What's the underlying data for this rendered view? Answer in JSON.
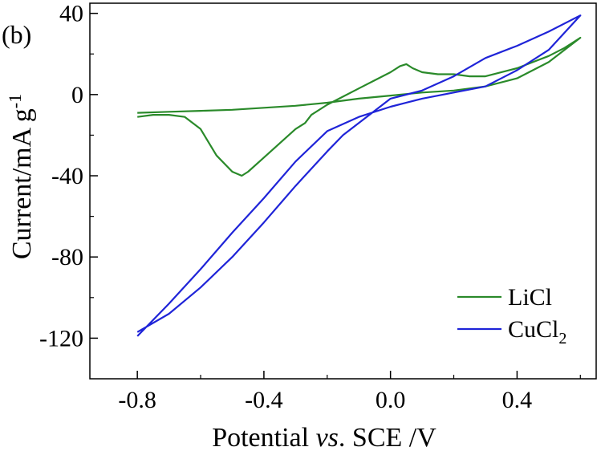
{
  "chart_data": {
    "type": "line",
    "panel_label": "(b)",
    "xlabel": "Potential vs. SCE /V",
    "xlabel_parts": {
      "pre": "Potential ",
      "italic": "vs",
      "post": ". SCE /V"
    },
    "ylabel": "Current/mA g-1",
    "ylabel_parts": {
      "main": "Current/mA g",
      "sup": "-1"
    },
    "xlim": [
      -0.95,
      0.65
    ],
    "ylim": [
      -140,
      45
    ],
    "x_ticks": [
      -0.8,
      -0.4,
      0.0,
      0.4
    ],
    "x_tick_labels": [
      "-0.8",
      "-0.4",
      "0.0",
      "0.4"
    ],
    "y_ticks": [
      40,
      0,
      -40,
      -80,
      -120
    ],
    "y_tick_labels": [
      "40",
      "0",
      "-40",
      "-80",
      "-120"
    ],
    "grid": false,
    "legend_position": "bottom-right",
    "series": [
      {
        "name": "LiCl",
        "color": "#2a8a2a",
        "x": [
          -0.8,
          -0.7,
          -0.6,
          -0.5,
          -0.4,
          -0.3,
          -0.2,
          -0.1,
          0.0,
          0.1,
          0.2,
          0.3,
          0.4,
          0.5,
          0.6,
          0.55,
          0.5,
          0.45,
          0.4,
          0.3,
          0.25,
          0.2,
          0.15,
          0.1,
          0.07,
          0.05,
          0.03,
          0.0,
          -0.05,
          -0.1,
          -0.15,
          -0.2,
          -0.25,
          -0.27,
          -0.3,
          -0.35,
          -0.4,
          -0.45,
          -0.47,
          -0.5,
          -0.55,
          -0.6,
          -0.65,
          -0.7,
          -0.75,
          -0.8
        ],
        "y": [
          -9,
          -8.5,
          -8,
          -7.5,
          -6.5,
          -5.5,
          -4,
          -2,
          -0.5,
          1,
          2,
          4,
          8,
          16,
          28,
          23,
          19,
          16,
          13,
          9,
          9,
          10,
          10,
          11,
          13,
          15,
          14,
          11,
          7,
          3,
          -1,
          -5,
          -10,
          -14,
          -17,
          -24,
          -31,
          -38,
          -40,
          -38,
          -30,
          -17,
          -11,
          -10,
          -10,
          -11
        ]
      },
      {
        "name": "CuCl2",
        "color": "#1f24d8",
        "x": [
          -0.8,
          -0.7,
          -0.6,
          -0.5,
          -0.4,
          -0.3,
          -0.2,
          -0.1,
          0.0,
          0.1,
          0.2,
          0.3,
          0.4,
          0.5,
          0.6,
          0.5,
          0.4,
          0.3,
          0.2,
          0.1,
          0.0,
          -0.1,
          -0.15,
          -0.2,
          -0.3,
          -0.4,
          -0.5,
          -0.6,
          -0.7,
          -0.8
        ],
        "y": [
          -119,
          -103,
          -86,
          -68,
          -51,
          -33,
          -18,
          -11,
          -6,
          -2,
          1,
          4,
          12,
          22,
          39,
          31,
          24,
          18,
          9,
          2,
          -2,
          -14,
          -20,
          -28,
          -45,
          -63,
          -80,
          -95,
          -108,
          -117
        ]
      }
    ]
  }
}
